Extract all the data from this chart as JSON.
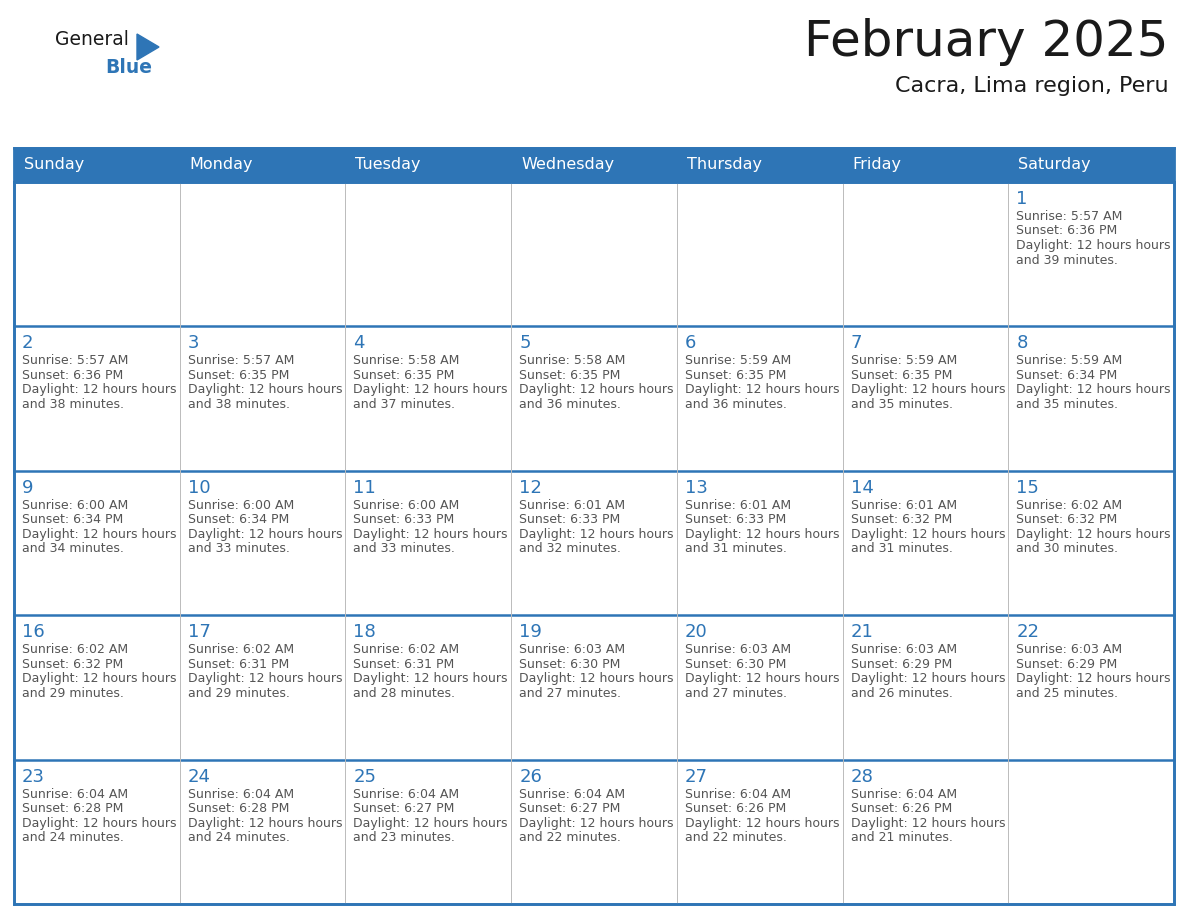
{
  "title": "February 2025",
  "subtitle": "Cacra, Lima region, Peru",
  "header_color": "#2E75B6",
  "header_text_color": "#FFFFFF",
  "border_color": "#2E75B6",
  "row_border_color": "#2E75B6",
  "cell_border_color": "#CCCCCC",
  "text_color": "#555555",
  "day_num_color": "#2E75B6",
  "days_of_week": [
    "Sunday",
    "Monday",
    "Tuesday",
    "Wednesday",
    "Thursday",
    "Friday",
    "Saturday"
  ],
  "calendar_data": [
    [
      {
        "day": null
      },
      {
        "day": null
      },
      {
        "day": null
      },
      {
        "day": null
      },
      {
        "day": null
      },
      {
        "day": null
      },
      {
        "day": 1,
        "sunrise": "5:57 AM",
        "sunset": "6:36 PM",
        "daylight": "12 hours and 39 minutes."
      }
    ],
    [
      {
        "day": 2,
        "sunrise": "5:57 AM",
        "sunset": "6:36 PM",
        "daylight": "12 hours and 38 minutes."
      },
      {
        "day": 3,
        "sunrise": "5:57 AM",
        "sunset": "6:35 PM",
        "daylight": "12 hours and 38 minutes."
      },
      {
        "day": 4,
        "sunrise": "5:58 AM",
        "sunset": "6:35 PM",
        "daylight": "12 hours and 37 minutes."
      },
      {
        "day": 5,
        "sunrise": "5:58 AM",
        "sunset": "6:35 PM",
        "daylight": "12 hours and 36 minutes."
      },
      {
        "day": 6,
        "sunrise": "5:59 AM",
        "sunset": "6:35 PM",
        "daylight": "12 hours and 36 minutes."
      },
      {
        "day": 7,
        "sunrise": "5:59 AM",
        "sunset": "6:35 PM",
        "daylight": "12 hours and 35 minutes."
      },
      {
        "day": 8,
        "sunrise": "5:59 AM",
        "sunset": "6:34 PM",
        "daylight": "12 hours and 35 minutes."
      }
    ],
    [
      {
        "day": 9,
        "sunrise": "6:00 AM",
        "sunset": "6:34 PM",
        "daylight": "12 hours and 34 minutes."
      },
      {
        "day": 10,
        "sunrise": "6:00 AM",
        "sunset": "6:34 PM",
        "daylight": "12 hours and 33 minutes."
      },
      {
        "day": 11,
        "sunrise": "6:00 AM",
        "sunset": "6:33 PM",
        "daylight": "12 hours and 33 minutes."
      },
      {
        "day": 12,
        "sunrise": "6:01 AM",
        "sunset": "6:33 PM",
        "daylight": "12 hours and 32 minutes."
      },
      {
        "day": 13,
        "sunrise": "6:01 AM",
        "sunset": "6:33 PM",
        "daylight": "12 hours and 31 minutes."
      },
      {
        "day": 14,
        "sunrise": "6:01 AM",
        "sunset": "6:32 PM",
        "daylight": "12 hours and 31 minutes."
      },
      {
        "day": 15,
        "sunrise": "6:02 AM",
        "sunset": "6:32 PM",
        "daylight": "12 hours and 30 minutes."
      }
    ],
    [
      {
        "day": 16,
        "sunrise": "6:02 AM",
        "sunset": "6:32 PM",
        "daylight": "12 hours and 29 minutes."
      },
      {
        "day": 17,
        "sunrise": "6:02 AM",
        "sunset": "6:31 PM",
        "daylight": "12 hours and 29 minutes."
      },
      {
        "day": 18,
        "sunrise": "6:02 AM",
        "sunset": "6:31 PM",
        "daylight": "12 hours and 28 minutes."
      },
      {
        "day": 19,
        "sunrise": "6:03 AM",
        "sunset": "6:30 PM",
        "daylight": "12 hours and 27 minutes."
      },
      {
        "day": 20,
        "sunrise": "6:03 AM",
        "sunset": "6:30 PM",
        "daylight": "12 hours and 27 minutes."
      },
      {
        "day": 21,
        "sunrise": "6:03 AM",
        "sunset": "6:29 PM",
        "daylight": "12 hours and 26 minutes."
      },
      {
        "day": 22,
        "sunrise": "6:03 AM",
        "sunset": "6:29 PM",
        "daylight": "12 hours and 25 minutes."
      }
    ],
    [
      {
        "day": 23,
        "sunrise": "6:04 AM",
        "sunset": "6:28 PM",
        "daylight": "12 hours and 24 minutes."
      },
      {
        "day": 24,
        "sunrise": "6:04 AM",
        "sunset": "6:28 PM",
        "daylight": "12 hours and 24 minutes."
      },
      {
        "day": 25,
        "sunrise": "6:04 AM",
        "sunset": "6:27 PM",
        "daylight": "12 hours and 23 minutes."
      },
      {
        "day": 26,
        "sunrise": "6:04 AM",
        "sunset": "6:27 PM",
        "daylight": "12 hours and 22 minutes."
      },
      {
        "day": 27,
        "sunrise": "6:04 AM",
        "sunset": "6:26 PM",
        "daylight": "12 hours and 22 minutes."
      },
      {
        "day": 28,
        "sunrise": "6:04 AM",
        "sunset": "6:26 PM",
        "daylight": "12 hours and 21 minutes."
      },
      {
        "day": null
      }
    ]
  ],
  "logo_general_color": "#1a1a1a",
  "logo_blue_color": "#2E75B6",
  "logo_triangle_color": "#2E75B6"
}
